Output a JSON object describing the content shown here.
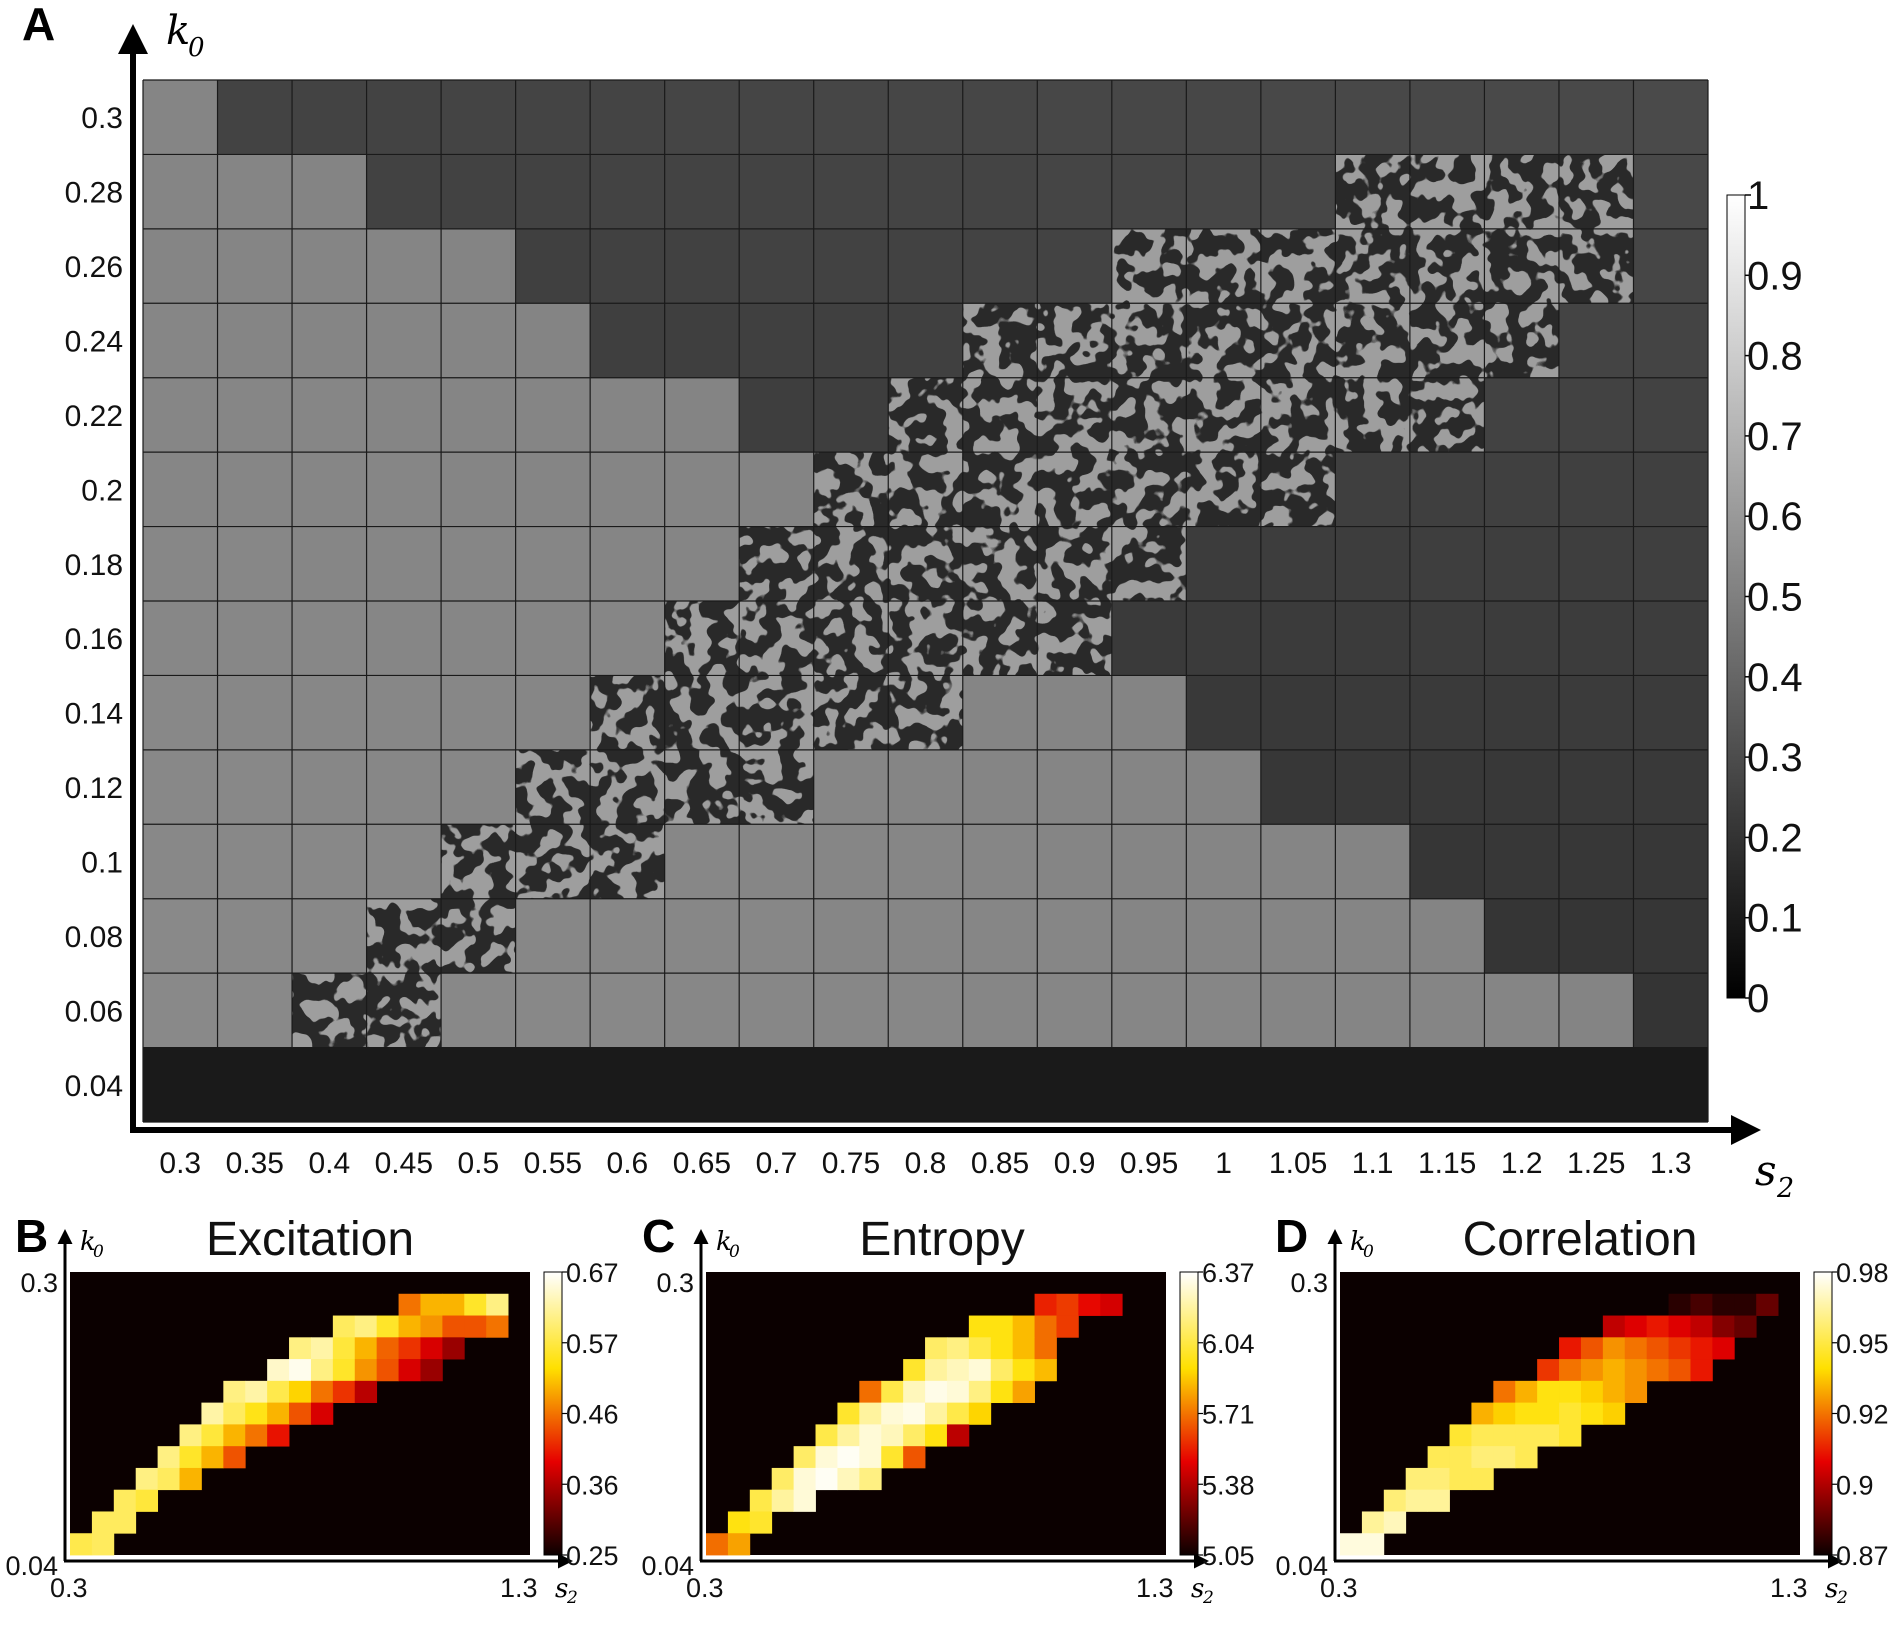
{
  "chart_data": [
    {
      "panel": "A",
      "type": "heatmap",
      "xlabel": "s",
      "xlabel_sub": "2",
      "ylabel": "k",
      "ylabel_sub": "0",
      "x_ticks": [
        "0.3",
        "0.35",
        "0.4",
        "0.45",
        "0.5",
        "0.55",
        "0.6",
        "0.65",
        "0.7",
        "0.75",
        "0.8",
        "0.85",
        "0.9",
        "0.95",
        "1",
        "1.05",
        "1.1",
        "1.15",
        "1.2",
        "1.25",
        "1.3"
      ],
      "y_ticks": [
        "0.3",
        "0.28",
        "0.26",
        "0.24",
        "0.22",
        "0.2",
        "0.18",
        "0.16",
        "0.14",
        "0.12",
        "0.1",
        "0.08",
        "0.06",
        "0.04"
      ],
      "pattern_rows": [
        {
          "k0": "0.28",
          "from": "1.1",
          "to": "1.25"
        },
        {
          "k0": "0.26",
          "from": "0.95",
          "to": "1.25"
        },
        {
          "k0": "0.24",
          "from": "0.85",
          "to": "1.2"
        },
        {
          "k0": "0.22",
          "from": "0.8",
          "to": "1.15"
        },
        {
          "k0": "0.2",
          "from": "0.75",
          "to": "1.05"
        },
        {
          "k0": "0.18",
          "from": "0.7",
          "to": "0.95"
        },
        {
          "k0": "0.16",
          "from": "0.65",
          "to": "0.9"
        },
        {
          "k0": "0.14",
          "from": "0.6",
          "to": "0.8"
        },
        {
          "k0": "0.12",
          "from": "0.55",
          "to": "0.7"
        },
        {
          "k0": "0.1",
          "from": "0.5",
          "to": "0.6"
        },
        {
          "k0": "0.08",
          "from": "0.45",
          "to": "0.5"
        },
        {
          "k0": "0.06",
          "from": "0.4",
          "to": "0.45"
        }
      ],
      "colorbar": {
        "colormap": "gray",
        "min": 0,
        "max": 1,
        "ticks": [
          "1",
          "0.9",
          "0.8",
          "0.7",
          "0.6",
          "0.5",
          "0.4",
          "0.3",
          "0.2",
          "0.1",
          "0"
        ]
      }
    },
    {
      "panel": "B",
      "type": "heatmap",
      "title": "Excitation",
      "xlabel": "s",
      "xlabel_sub": "2",
      "ylabel": "k",
      "ylabel_sub": "0",
      "x_ticks": [
        "0.3",
        "1.3"
      ],
      "y_ticks": [
        "0.3",
        "0.04"
      ],
      "colormap": "hot",
      "colorbar": {
        "min": 0.25,
        "max": 0.67,
        "ticks": [
          "0.67",
          "0.57",
          "0.46",
          "0.36",
          "0.25"
        ]
      },
      "rows": [
        {
          "k0": "0.28",
          "values": [
            0.46,
            0.5,
            0.5,
            0.55,
            0.6
          ]
        },
        {
          "k0": "0.26",
          "values": [
            0.58,
            0.6,
            0.55,
            0.5,
            0.48,
            0.44,
            0.44,
            0.46
          ]
        },
        {
          "k0": "0.24",
          "values": [
            0.6,
            0.62,
            0.56,
            0.5,
            0.45,
            0.42,
            0.38,
            0.34
          ]
        },
        {
          "k0": "0.22",
          "values": [
            0.64,
            0.66,
            0.6,
            0.55,
            0.48,
            0.44,
            0.38,
            0.34
          ]
        },
        {
          "k0": "0.2",
          "values": [
            0.6,
            0.62,
            0.57,
            0.52,
            0.46,
            0.42,
            0.36
          ]
        },
        {
          "k0": "0.18",
          "values": [
            0.62,
            0.58,
            0.54,
            0.5,
            0.44,
            0.38
          ]
        },
        {
          "k0": "0.16",
          "values": [
            0.6,
            0.56,
            0.5,
            0.46,
            0.4
          ]
        },
        {
          "k0": "0.14",
          "values": [
            0.6,
            0.55,
            0.5,
            0.44
          ]
        },
        {
          "k0": "0.12",
          "values": [
            0.6,
            0.58,
            0.5
          ]
        },
        {
          "k0": "0.1",
          "values": [
            0.58,
            0.56
          ]
        },
        {
          "k0": "0.08",
          "values": [
            0.58,
            0.58
          ]
        },
        {
          "k0": "0.06",
          "values": [
            0.57,
            0.58
          ]
        }
      ]
    },
    {
      "panel": "C",
      "type": "heatmap",
      "title": "Entropy",
      "xlabel": "s",
      "xlabel_sub": "2",
      "ylabel": "k",
      "ylabel_sub": "0",
      "x_ticks": [
        "0.3",
        "1.3"
      ],
      "y_ticks": [
        "0.3",
        "0.04"
      ],
      "colormap": "hot",
      "colorbar": {
        "min": 5.05,
        "max": 6.37,
        "ticks": [
          "6.37",
          "6.04",
          "5.71",
          "5.38",
          "5.05"
        ]
      },
      "rows": [
        {
          "k0": "0.28",
          "values": [
            5.55,
            5.6,
            5.5,
            5.45
          ]
        },
        {
          "k0": "0.26",
          "values": [
            5.95,
            5.95,
            5.85,
            5.7,
            5.6
          ]
        },
        {
          "k0": "0.24",
          "values": [
            6.1,
            6.15,
            6.05,
            5.95,
            5.85,
            5.7
          ]
        },
        {
          "k0": "0.22",
          "values": [
            6.0,
            6.2,
            6.25,
            6.3,
            6.1,
            5.95,
            5.85
          ]
        },
        {
          "k0": "0.2",
          "values": [
            5.7,
            6.05,
            6.25,
            6.33,
            6.3,
            6.15,
            5.95,
            5.8
          ]
        },
        {
          "k0": "0.18",
          "values": [
            6.0,
            6.2,
            6.3,
            6.33,
            6.2,
            6.05,
            5.9
          ]
        },
        {
          "k0": "0.16",
          "values": [
            6.05,
            6.2,
            6.3,
            6.25,
            6.1,
            5.95,
            5.4
          ]
        },
        {
          "k0": "0.14",
          "values": [
            6.1,
            6.3,
            6.35,
            6.3,
            6.0,
            5.65
          ]
        },
        {
          "k0": "0.12",
          "values": [
            6.1,
            6.3,
            6.35,
            6.25,
            6.15
          ]
        },
        {
          "k0": "0.1",
          "values": [
            6.05,
            6.2,
            6.3
          ]
        },
        {
          "k0": "0.08",
          "values": [
            5.95,
            6.0
          ]
        },
        {
          "k0": "0.06",
          "values": [
            5.7,
            5.8
          ]
        }
      ]
    },
    {
      "panel": "D",
      "type": "heatmap",
      "title": "Correlation",
      "xlabel": "s",
      "xlabel_sub": "2",
      "ylabel": "k",
      "ylabel_sub": "0",
      "x_ticks": [
        "0.3",
        "1.3"
      ],
      "y_ticks": [
        "0.3",
        "0.04"
      ],
      "colormap": "hot",
      "colorbar": {
        "min": 0.87,
        "max": 0.98,
        "ticks": [
          "0.98",
          "0.95",
          "0.92",
          "0.9",
          "0.87"
        ]
      },
      "rows": [
        {
          "k0": "0.28",
          "values": [
            0.875,
            0.88,
            0.875,
            0.875,
            0.885
          ]
        },
        {
          "k0": "0.26",
          "values": [
            0.9,
            0.905,
            0.91,
            0.905,
            0.9,
            0.89,
            0.885
          ]
        },
        {
          "k0": "0.24",
          "values": [
            0.91,
            0.92,
            0.93,
            0.925,
            0.92,
            0.915,
            0.91,
            0.905
          ]
        },
        {
          "k0": "0.22",
          "values": [
            0.915,
            0.925,
            0.93,
            0.935,
            0.93,
            0.925,
            0.92,
            0.91
          ]
        },
        {
          "k0": "0.2",
          "values": [
            0.925,
            0.935,
            0.945,
            0.945,
            0.94,
            0.935,
            0.93
          ]
        },
        {
          "k0": "0.18",
          "values": [
            0.935,
            0.94,
            0.945,
            0.945,
            0.95,
            0.945,
            0.94
          ]
        },
        {
          "k0": "0.16",
          "values": [
            0.95,
            0.955,
            0.955,
            0.955,
            0.955,
            0.95
          ]
        },
        {
          "k0": "0.14",
          "values": [
            0.955,
            0.955,
            0.96,
            0.96,
            0.955
          ]
        },
        {
          "k0": "0.12",
          "values": [
            0.96,
            0.96,
            0.955,
            0.955
          ]
        },
        {
          "k0": "0.1",
          "values": [
            0.96,
            0.965,
            0.965
          ]
        },
        {
          "k0": "0.08",
          "values": [
            0.965,
            0.97
          ]
        },
        {
          "k0": "0.06",
          "values": [
            0.975,
            0.975
          ]
        }
      ]
    }
  ],
  "labels": {
    "panel_a": "A",
    "panel_b": "B",
    "panel_c": "C",
    "panel_d": "D"
  }
}
